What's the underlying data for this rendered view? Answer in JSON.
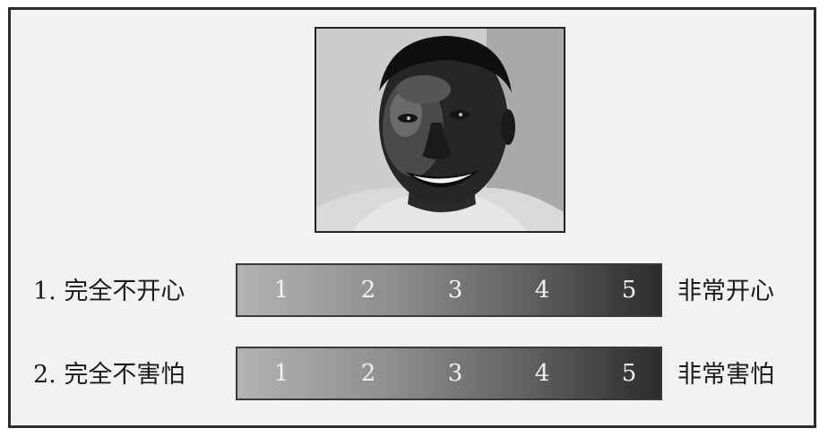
{
  "questions": [
    {
      "left_label": "1. 完全不开心",
      "right_label": "非常开心",
      "scale": [
        "1",
        "2",
        "3",
        "4",
        "5"
      ]
    },
    {
      "left_label": "2. 完全不害怕",
      "right_label": "非常害怕",
      "scale": [
        "1",
        "2",
        "3",
        "4",
        "5"
      ]
    }
  ],
  "photo": {
    "subject": "smiling-face-photo",
    "colors": {
      "background": "#cfcfcf",
      "skin_shadow": "#1e1e1e",
      "hair": "#111111"
    }
  },
  "colors": {
    "frame_border": "#2b2b2b",
    "panel_background": "#f2f2f2",
    "scale_light": "#b3b3b3",
    "scale_dark": "#2c2c2c",
    "scale_text": "#f2f2f2"
  }
}
